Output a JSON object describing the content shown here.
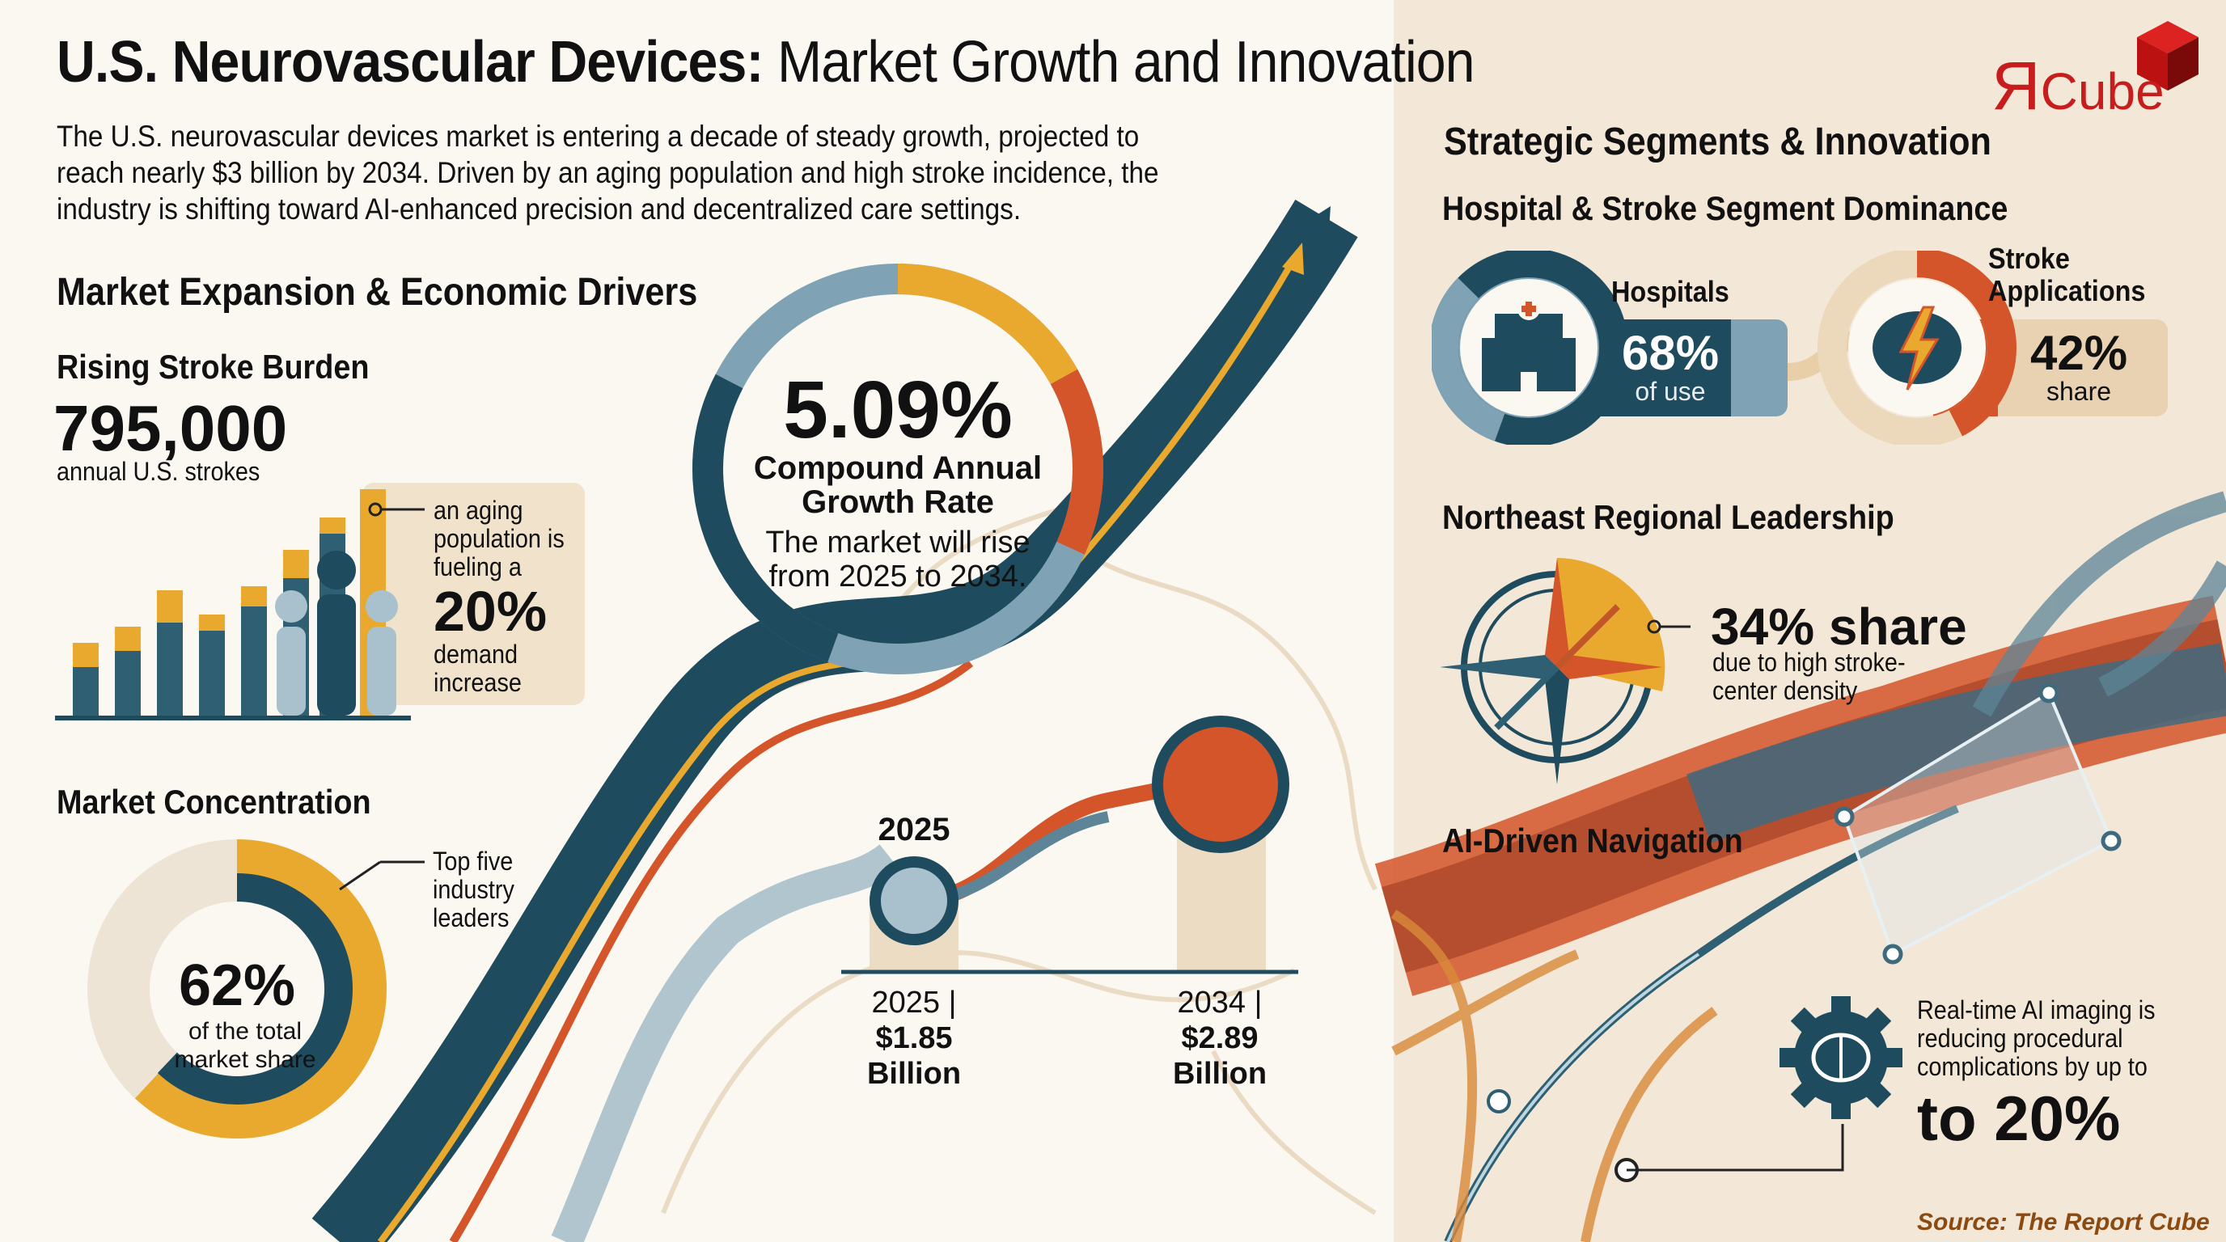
{
  "header": {
    "title_bold": "U.S. Neurovascular Devices:",
    "title_regular": "Market Growth and Innovation",
    "intro": "The U.S. neurovascular devices market is entering a decade of steady growth, projected to reach nearly $3 billion by 2034. Driven by an aging population and high stroke incidence, the industry is shifting toward AI-enhanced precision and decentralized care settings.",
    "logo_text": "Cube",
    "logo_letter": "Я"
  },
  "left": {
    "section_title": "Market Expansion & Economic Drivers",
    "stroke": {
      "title": "Rising Stroke Burden",
      "value": "795,000",
      "caption": "annual U.S. strokes",
      "callout_pre": "an aging population is fueling a",
      "callout_value": "20%",
      "callout_post": "demand increase"
    },
    "concentration": {
      "title": "Market Concentration",
      "value": "62%",
      "caption": "of the total market share",
      "share_fraction": 0.62,
      "callout": "Top five industry leaders"
    }
  },
  "middle": {
    "cagr_value": "5.09%",
    "cagr_label": "Compound Annual Growth Rate",
    "cagr_caption": "The market will rise from 2025 to 2034.",
    "marker_label": "2025",
    "start": {
      "year": "2025 |",
      "value": "$1.85",
      "unit": "Billion"
    },
    "end": {
      "year": "2034 |",
      "value": "$2.89",
      "unit": "Billion"
    }
  },
  "right": {
    "section_title": "Strategic Segments & Innovation",
    "segments_title": "Hospital & Stroke Segment Dominance",
    "hospitals": {
      "label": "Hospitals",
      "value": "68%",
      "caption": "of use",
      "fraction": 0.68
    },
    "stroke_apps": {
      "label": "Stroke Applications",
      "value": "42%",
      "caption": "share",
      "fraction": 0.42
    },
    "region_title": "Northeast Regional Leadership",
    "region_value": "34% share",
    "region_caption": "due to high stroke-center density",
    "ai_title": "AI-Driven Navigation",
    "ai_caption": "Real-time AI imaging is reducing procedural complications by up to",
    "ai_value": "to 20%",
    "source": "Source: The Report Cube"
  },
  "colors": {
    "navy": "#1f4b5e",
    "steel": "#7fa3b5",
    "gold": "#e9a92e",
    "orange": "#d4552a",
    "beige": "#ead9bf",
    "brand_red": "#c81d1d"
  }
}
